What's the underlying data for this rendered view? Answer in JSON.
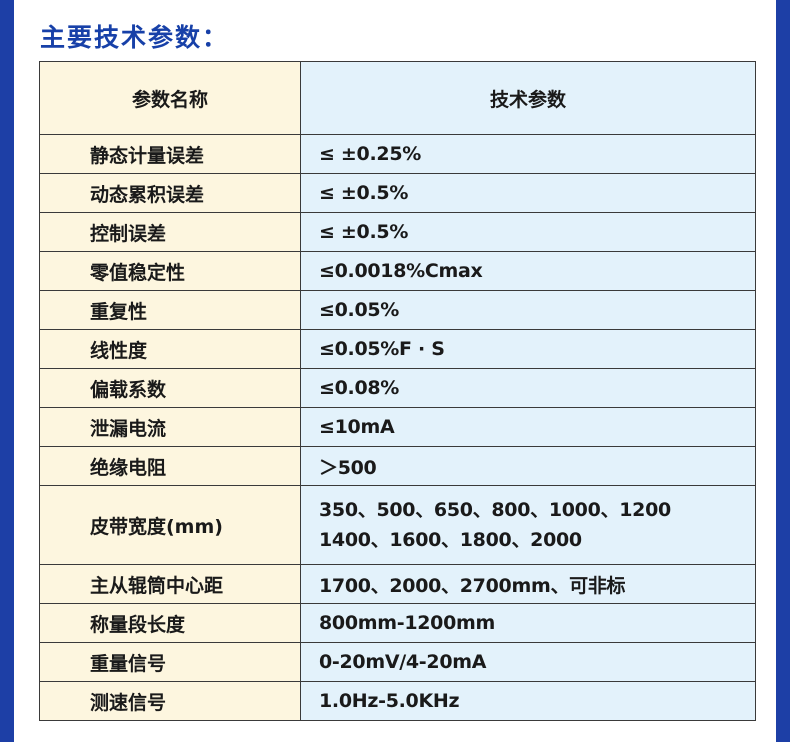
{
  "heading": "主要技术参数：",
  "table": {
    "header": {
      "name": "参数名称",
      "value": "技术参数"
    },
    "rows": [
      {
        "name": "静态计量误差",
        "value": "≤ ±0.25%"
      },
      {
        "name": "动态累积误差",
        "value": "≤ ±0.5%"
      },
      {
        "name": "控制误差",
        "value": "≤ ±0.5%"
      },
      {
        "name": "零值稳定性",
        "value": "≤0.0018%Cmax"
      },
      {
        "name": "重复性",
        "value": "≤0.05%"
      },
      {
        "name": "线性度",
        "value": "≤0.05%F · S"
      },
      {
        "name": "偏载系数",
        "value": "≤0.08%"
      },
      {
        "name": "泄漏电流",
        "value": "≤10mA"
      },
      {
        "name": "绝缘电阻",
        "value": "＞500"
      },
      {
        "name": "皮带宽度(mm)",
        "value_line1": "350、500、650、800、1000、1200",
        "value_line2": "1400、1600、1800、2000"
      },
      {
        "name": "主从辊筒中心距",
        "value": "1700、2000、2700mm、可非标"
      },
      {
        "name": "称量段长度",
        "value": "800mm-1200mm"
      },
      {
        "name": "重量信号",
        "value": "0-20mV/4-20mA"
      },
      {
        "name": "测速信号",
        "value": "1.0Hz-5.0KHz"
      }
    ]
  },
  "colors": {
    "accent": "#1740a8",
    "side_bar": "#1d3fa6",
    "name_column_bg": "#fdf6df",
    "value_column_bg": "#e3f2fb"
  }
}
